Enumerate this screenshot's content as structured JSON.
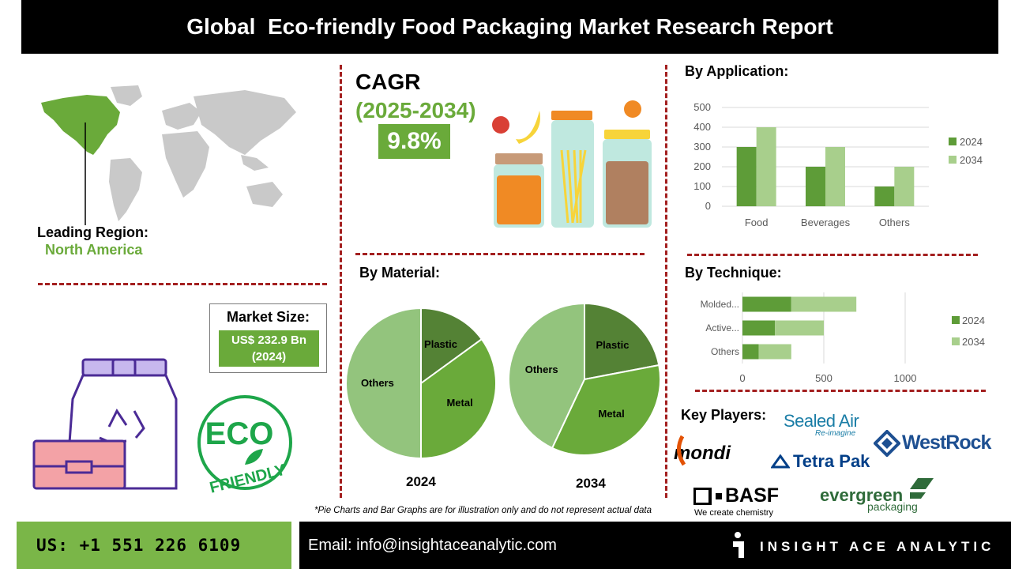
{
  "header": {
    "title": "Global  Eco-friendly Food Packaging Market Research Report"
  },
  "region": {
    "label": "Leading Region:",
    "value": "North America"
  },
  "market_size": {
    "label": "Market Size:",
    "value_line1": "US$ 232.9 Bn",
    "value_line2": "(2024)"
  },
  "cagr": {
    "label": "CAGR",
    "years": "(2025-2034)",
    "value": "9.8%"
  },
  "eco_badge": {
    "text_top": "ECO",
    "text_bottom": "FRIENDLY"
  },
  "key_players": {
    "label": "Key Players:",
    "logos": [
      {
        "name": "Sealed Air",
        "tagline": "Re-imagine"
      },
      {
        "name": "WestRock"
      },
      {
        "name": "mondi"
      },
      {
        "name": "Tetra Pak"
      },
      {
        "name": "BASF",
        "tagline": "We create chemistry"
      },
      {
        "name": "evergreen",
        "tagline": "packaging"
      }
    ]
  },
  "footnote": "*Pie Charts and Bar Graphs are for illustration only and do not represent actual data",
  "footer": {
    "phone": "US: +1 551 226 6109",
    "email": "Email: info@insightaceanalytic.com",
    "brand": "INSIGHT ACE ANALYTIC"
  },
  "colors": {
    "dark_green": "#5e9c38",
    "light_green": "#a8cf8c",
    "accent_green": "#6aaa3a",
    "divider_red": "#a31f1f",
    "map_gray": "#c9c9c9"
  },
  "chart_data": [
    {
      "id": "application",
      "type": "bar",
      "title": "By Application:",
      "categories": [
        "Food",
        "Beverages",
        "Others"
      ],
      "series": [
        {
          "name": "2024",
          "values": [
            300,
            200,
            100
          ]
        },
        {
          "name": "2034",
          "values": [
            400,
            300,
            200
          ]
        }
      ],
      "ylim": [
        0,
        500
      ],
      "yticks": [
        0,
        100,
        200,
        300,
        400,
        500
      ],
      "grid": true,
      "legend": "right"
    },
    {
      "id": "technique",
      "type": "bar",
      "orientation": "horizontal",
      "stacked": true,
      "title": "By Technique:",
      "categories": [
        "Molded...",
        "Active...",
        "Others"
      ],
      "series": [
        {
          "name": "2024",
          "values": [
            300,
            200,
            100
          ]
        },
        {
          "name": "2034",
          "values": [
            400,
            300,
            200
          ]
        }
      ],
      "xlim": [
        0,
        1000
      ],
      "xticks": [
        0,
        500,
        1000
      ],
      "grid": true,
      "legend": "right"
    },
    {
      "id": "material-2024",
      "type": "pie",
      "title": "By Material:",
      "caption": "2024",
      "labels": [
        "Plastic",
        "Metal",
        "Others"
      ],
      "values": [
        15,
        35,
        50
      ]
    },
    {
      "id": "material-2034",
      "type": "pie",
      "caption": "2034",
      "labels": [
        "Plastic",
        "Metal",
        "Others"
      ],
      "values": [
        22,
        35,
        43
      ]
    }
  ]
}
